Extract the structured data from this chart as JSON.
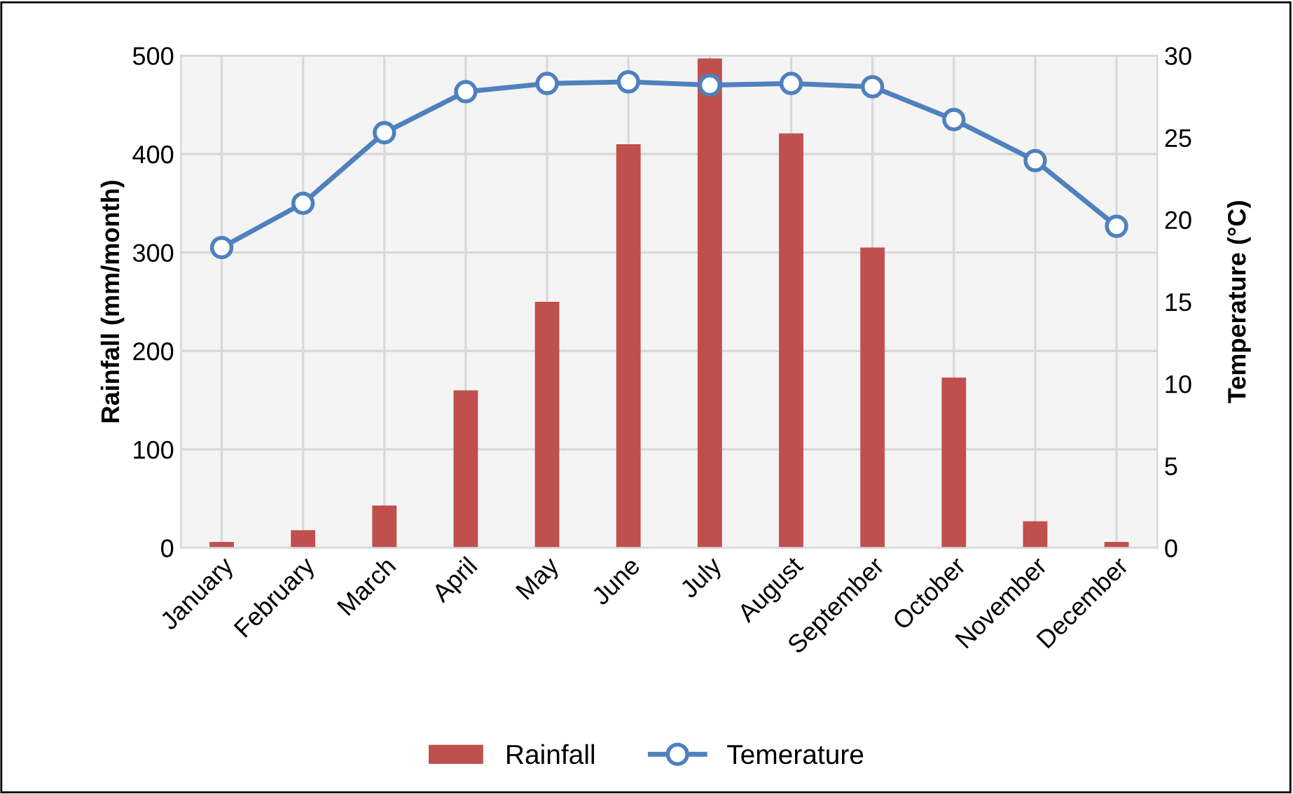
{
  "chart_data": {
    "type": "bar",
    "categories": [
      "January",
      "February",
      "March",
      "April",
      "May",
      "June",
      "July",
      "August",
      "September",
      "October",
      "November",
      "December"
    ],
    "series": [
      {
        "name": "Rainfall",
        "color": "#c0504d",
        "values": [
          6,
          18,
          43,
          160,
          250,
          410,
          497,
          421,
          305,
          173,
          27,
          6
        ]
      },
      {
        "name": "Temerature",
        "type": "line",
        "axis": "y2",
        "color": "#4f81bd",
        "marker": "circle",
        "values": [
          18.3,
          21.0,
          25.3,
          27.8,
          28.3,
          28.4,
          28.2,
          28.3,
          28.1,
          26.1,
          23.6,
          19.6
        ]
      }
    ],
    "ylabel": "Rainfall (mm/month)",
    "y2label": "Temperature (°C)",
    "ylim": [
      0,
      500
    ],
    "yticks": [
      0,
      100,
      200,
      300,
      400,
      500
    ],
    "y2lim": [
      0,
      30
    ],
    "y2ticks": [
      0,
      5,
      10,
      15,
      20,
      25,
      30
    ],
    "grid": true,
    "legend": "bottom"
  }
}
